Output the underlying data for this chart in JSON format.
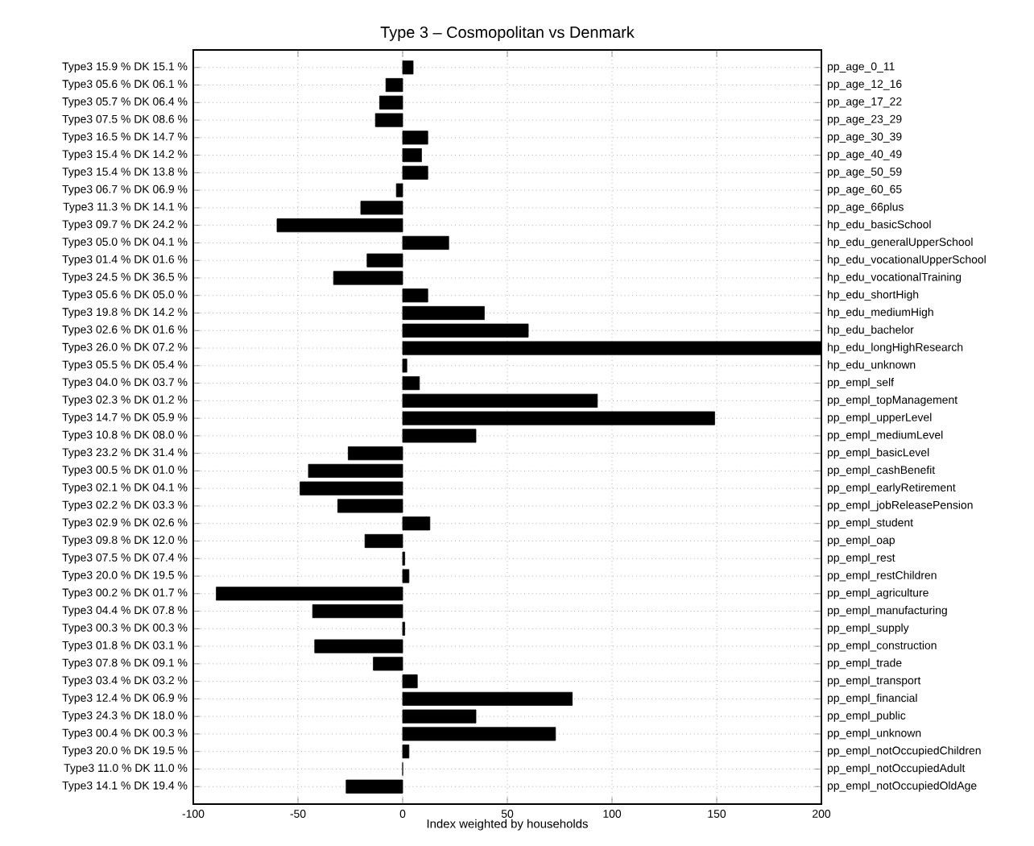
{
  "chart_data": {
    "type": "bar",
    "orientation": "horizontal",
    "title": "Type 3 – Cosmopolitan vs Denmark",
    "xlabel": "Index weighted by households",
    "categories": [
      "Type3 15.9 %  DK 15.1 %",
      "Type3 05.6 %  DK 06.1 %",
      "Type3 05.7 %  DK 06.4 %",
      "Type3 07.5 %  DK 08.6 %",
      "Type3 16.5 %  DK 14.7 %",
      "Type3 15.4 %  DK 14.2 %",
      "Type3 15.4 %  DK 13.8 %",
      "Type3 06.7 %  DK 06.9 %",
      "Type3 11.3 %  DK 14.1 %",
      "Type3 09.7 %  DK 24.2 %",
      "Type3 05.0 %  DK 04.1 %",
      "Type3 01.4 %  DK 01.6 %",
      "Type3 24.5 %  DK 36.5 %",
      "Type3 05.6 %  DK 05.0 %",
      "Type3 19.8 %  DK 14.2 %",
      "Type3 02.6 %  DK 01.6 %",
      "Type3 26.0 %  DK 07.2 %",
      "Type3 05.5 %  DK 05.4 %",
      "Type3 04.0 %  DK 03.7 %",
      "Type3 02.3 %  DK 01.2 %",
      "Type3 14.7 %  DK 05.9 %",
      "Type3 10.8 %  DK 08.0 %",
      "Type3 23.2 %  DK 31.4 %",
      "Type3 00.5 %  DK 01.0 %",
      "Type3 02.1 %  DK 04.1 %",
      "Type3 02.2 %  DK 03.3 %",
      "Type3 02.9 %  DK 02.6 %",
      "Type3 09.8 %  DK 12.0 %",
      "Type3 07.5 %  DK 07.4 %",
      "Type3 20.0 %  DK 19.5 %",
      "Type3 00.2 %  DK 01.7 %",
      "Type3 04.4 %  DK 07.8 %",
      "Type3 00.3 %  DK 00.3 %",
      "Type3 01.8 %  DK 03.1 %",
      "Type3 07.8 %  DK 09.1 %",
      "Type3 03.4 %  DK 03.2 %",
      "Type3 12.4 %  DK 06.9 %",
      "Type3 24.3 %  DK 18.0 %",
      "Type3 00.4 %  DK 00.3 %",
      "Type3 20.0 %  DK 19.5 %",
      "Type3 11.0 %  DK 11.0 %",
      "Type3 14.1 %  DK 19.4 %"
    ],
    "y2_categories": [
      "pp_age_0_11",
      "pp_age_12_16",
      "pp_age_17_22",
      "pp_age_23_29",
      "pp_age_30_39",
      "pp_age_40_49",
      "pp_age_50_59",
      "pp_age_60_65",
      "pp_age_66plus",
      "hp_edu_basicSchool",
      "hp_edu_generalUpperSchool",
      "hp_edu_vocationalUpperSchool",
      "hp_edu_vocationalTraining",
      "hp_edu_shortHigh",
      "hp_edu_mediumHigh",
      "hp_edu_bachelor",
      "hp_edu_longHighResearch",
      "hp_edu_unknown",
      "pp_empl_self",
      "pp_empl_topManagement",
      "pp_empl_upperLevel",
      "pp_empl_mediumLevel",
      "pp_empl_basicLevel",
      "pp_empl_cashBenefit",
      "pp_empl_earlyRetirement",
      "pp_empl_jobReleasePension",
      "pp_empl_student",
      "pp_empl_oap",
      "pp_empl_rest",
      "pp_empl_restChildren",
      "pp_empl_agriculture",
      "pp_empl_manufacturing",
      "pp_empl_supply",
      "pp_empl_construction",
      "pp_empl_trade",
      "pp_empl_transport",
      "pp_empl_financial",
      "pp_empl_public",
      "pp_empl_unknown",
      "pp_empl_notOccupiedChildren",
      "pp_empl_notOccupiedAdult",
      "pp_empl_notOccupiedOldAge"
    ],
    "values": [
      5,
      -8,
      -11,
      -13,
      12,
      9,
      12,
      -3,
      -20,
      -60,
      22,
      -17,
      -33,
      12,
      39,
      60,
      200,
      2,
      8,
      93,
      149,
      35,
      -26,
      -45,
      -49,
      -31,
      13,
      -18,
      1,
      3,
      -89,
      -43,
      1,
      -42,
      -14,
      7,
      81,
      35,
      73,
      3,
      0,
      -27
    ],
    "color": "#000000",
    "xlim": [
      -100,
      200
    ],
    "xticks": [
      -100,
      -50,
      0,
      50,
      100,
      150,
      200
    ],
    "grid": true
  }
}
